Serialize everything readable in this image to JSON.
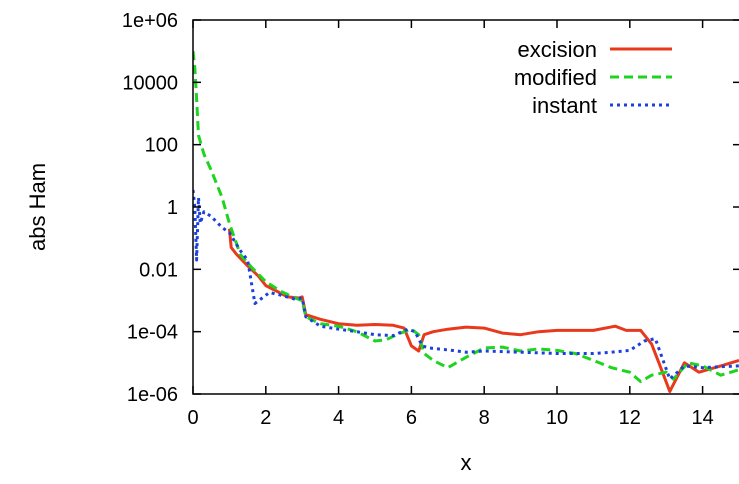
{
  "chart_data": {
    "type": "line",
    "title": "",
    "xlabel": "x",
    "ylabel": "abs Ham",
    "xlim": [
      0,
      15
    ],
    "ylim": [
      1e-06,
      1000000.0
    ],
    "yscale": "log",
    "grid": false,
    "legend_position": "top-right",
    "xticks": [
      0,
      2,
      4,
      6,
      8,
      10,
      12,
      14
    ],
    "xtick_labels": [
      "0",
      "2",
      "4",
      "6",
      "8",
      "10",
      "12",
      "14"
    ],
    "yticks": [
      1e-06,
      0.0001,
      0.01,
      1,
      100,
      10000,
      1000000
    ],
    "ytick_labels": [
      "1e-06",
      "1e-04",
      "0.01",
      "1",
      "100",
      "10000",
      "1e+06"
    ],
    "series": [
      {
        "name": "excision",
        "color": "#e8391c",
        "dash": "solid",
        "x": [
          1.0,
          1.05,
          1.2,
          1.5,
          1.8,
          2.0,
          2.3,
          2.6,
          2.9,
          3.0,
          3.1,
          3.5,
          4.0,
          4.5,
          5.0,
          5.5,
          5.8,
          6.0,
          6.2,
          6.35,
          6.6,
          7.0,
          7.5,
          8.0,
          8.5,
          9.0,
          9.5,
          10.0,
          10.5,
          11.0,
          11.6,
          11.9,
          12.3,
          12.6,
          12.8,
          13.1,
          13.5,
          13.9,
          14.5,
          15.0
        ],
        "y": [
          0.2,
          0.05,
          0.03,
          0.013,
          0.006,
          0.003,
          0.002,
          0.0013,
          0.0012,
          0.0013,
          0.00035,
          0.00025,
          0.00018,
          0.00016,
          0.00017,
          0.00016,
          0.00013,
          3.5e-05,
          2.4e-05,
          8e-05,
          0.0001,
          0.00012,
          0.00014,
          0.00013,
          9e-05,
          8e-05,
          0.0001,
          0.00011,
          0.00011,
          0.00011,
          0.00015,
          0.00011,
          0.00011,
          4e-05,
          1e-05,
          1.2e-06,
          1e-05,
          5e-06,
          8e-06,
          1.2e-05
        ]
      },
      {
        "name": "modified",
        "color": "#1ed41e",
        "dash": "dashed",
        "x": [
          0.0,
          0.05,
          0.1,
          0.15,
          0.3,
          0.5,
          0.8,
          1.0,
          1.3,
          1.6,
          2.0,
          2.4,
          2.8,
          3.0,
          3.1,
          3.5,
          4.0,
          4.5,
          5.0,
          5.3,
          5.7,
          6.0,
          6.2,
          6.35,
          6.6,
          7.0,
          7.5,
          8.0,
          8.5,
          9.0,
          9.5,
          10.0,
          10.5,
          11.0,
          11.5,
          12.0,
          12.3,
          12.6,
          13.0,
          13.2,
          13.6,
          14.0,
          14.5,
          15.0
        ],
        "y": [
          100000.0,
          30000.0,
          3000.0,
          200.0,
          50.0,
          15.0,
          2.0,
          0.3,
          0.03,
          0.012,
          0.004,
          0.002,
          0.0012,
          0.001,
          0.0003,
          0.00018,
          0.00015,
          0.0001,
          5e-05,
          5.5e-05,
          9e-05,
          0.00012,
          8e-05,
          2e-05,
          1.2e-05,
          7e-06,
          1.5e-05,
          3e-05,
          3.2e-05,
          2.4e-05,
          2.8e-05,
          2.5e-05,
          2e-05,
          1.2e-05,
          7e-06,
          5e-06,
          2.5e-06,
          4e-06,
          5e-06,
          3e-06,
          1e-05,
          8e-06,
          4e-06,
          6e-06
        ]
      },
      {
        "name": "instant",
        "color": "#1c3fe0",
        "dash": "dotted",
        "x": [
          0.0,
          0.05,
          0.1,
          0.15,
          0.2,
          0.3,
          0.5,
          0.8,
          1.0,
          1.3,
          1.5,
          1.7,
          1.9,
          2.1,
          2.4,
          2.8,
          3.0,
          3.1,
          3.5,
          4.0,
          4.5,
          5.0,
          5.5,
          5.9,
          6.1,
          6.3,
          6.5,
          7.0,
          7.5,
          8.0,
          9.0,
          10.0,
          11.0,
          11.5,
          12.0,
          12.4,
          12.7,
          13.1,
          13.5,
          14.0,
          14.5,
          15.0
        ],
        "y": [
          3.5,
          1.0,
          0.02,
          2.0,
          0.3,
          0.7,
          0.5,
          0.22,
          0.15,
          0.04,
          0.02,
          0.0008,
          0.0012,
          0.0018,
          0.0015,
          0.0011,
          0.0012,
          0.0003,
          0.00015,
          0.00012,
          0.0001,
          8e-05,
          7.5e-05,
          0.00012,
          0.0001,
          3.5e-05,
          3e-05,
          2.6e-05,
          2.2e-05,
          2.4e-05,
          2.2e-05,
          2e-05,
          2e-05,
          2.2e-05,
          2.5e-05,
          5e-05,
          6e-05,
          3e-06,
          8e-06,
          7e-06,
          7.5e-06,
          8e-06
        ]
      }
    ]
  }
}
